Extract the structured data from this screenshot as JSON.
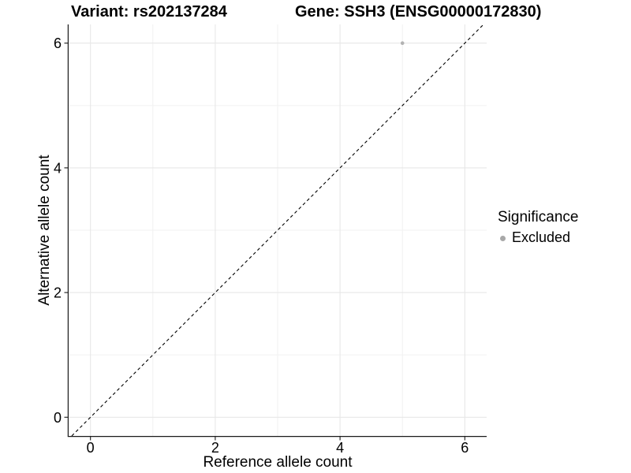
{
  "chart_data": {
    "type": "scatter",
    "title_left": "Variant: rs202137284",
    "title_right": "Gene: SSH3 (ENSG00000172830)",
    "xlabel": "Reference allele count",
    "ylabel": "Alternative allele count",
    "xlim": [
      -0.35,
      6.35
    ],
    "ylim": [
      -0.3,
      6.3
    ],
    "x_major_ticks": [
      0,
      2,
      4,
      6
    ],
    "y_major_ticks": [
      0,
      2,
      4,
      6
    ],
    "x_minor_gridlines": [
      1,
      3,
      5
    ],
    "y_minor_gridlines": [
      1,
      3,
      5
    ],
    "grid": true,
    "legend_position": "right",
    "reference_line": {
      "type": "identity y=x",
      "style": "dashed",
      "color": "#000000"
    },
    "series": [
      {
        "name": "Excluded",
        "color": "#b2b2b2",
        "points": [
          {
            "x": 5,
            "y": 6
          }
        ]
      }
    ],
    "legend": {
      "title": "Significance",
      "items": [
        {
          "label": "Excluded",
          "color": "#a8a8a8"
        }
      ]
    }
  },
  "colors": {
    "background": "#ffffff",
    "grid_major": "#e7e7e7",
    "grid_minor": "#f1f1f1",
    "axis_line": "#1a1a1a",
    "tick_label": "#000000",
    "point": "#b2b2b2"
  }
}
